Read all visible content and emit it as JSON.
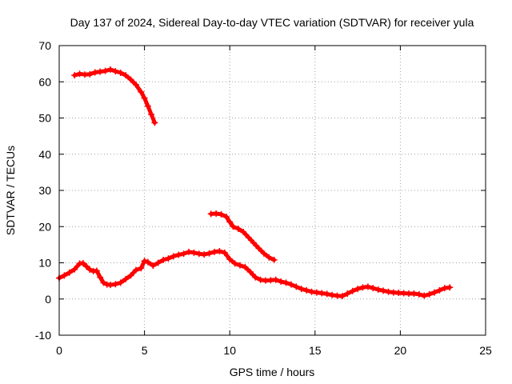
{
  "chart_data": {
    "type": "scatter",
    "title": "Day 137 of 2024, Sidereal Day-to-day VTEC variation (SDTVAR) for receiver yula",
    "xlabel": "GPS time / hours",
    "ylabel": "SDTVAR / TECUs",
    "xlim": [
      0,
      25
    ],
    "ylim": [
      -10,
      70
    ],
    "xticks": [
      0,
      5,
      10,
      15,
      20,
      25
    ],
    "yticks": [
      -10,
      0,
      10,
      20,
      30,
      40,
      50,
      60,
      70
    ],
    "xtick_labels": [
      "0",
      "5",
      "10",
      "15",
      "20",
      "25"
    ],
    "ytick_labels": [
      "-10",
      "0",
      "10",
      "20",
      "30",
      "40",
      "50",
      "60",
      "70"
    ],
    "grid": true,
    "series_color": "#ff0000",
    "series": [
      {
        "name": "arc-1",
        "points": [
          [
            0.9,
            61.8
          ],
          [
            1.2,
            62.2
          ],
          [
            1.5,
            62.0
          ],
          [
            1.8,
            62.1
          ],
          [
            2.1,
            62.6
          ],
          [
            2.4,
            62.8
          ],
          [
            2.7,
            63.0
          ],
          [
            3.0,
            63.4
          ],
          [
            3.3,
            62.9
          ],
          [
            3.6,
            62.5
          ],
          [
            3.9,
            61.8
          ],
          [
            4.2,
            60.6
          ],
          [
            4.5,
            59.2
          ],
          [
            4.8,
            57.2
          ],
          [
            5.0,
            55.5
          ],
          [
            5.2,
            53.3
          ],
          [
            5.4,
            51.0
          ],
          [
            5.6,
            48.7
          ]
        ]
      },
      {
        "name": "arc-2",
        "points": [
          [
            0.0,
            5.8
          ],
          [
            0.3,
            6.5
          ],
          [
            0.6,
            7.3
          ],
          [
            0.9,
            8.2
          ],
          [
            1.2,
            9.8
          ],
          [
            1.4,
            9.9
          ],
          [
            1.6,
            9.0
          ],
          [
            1.8,
            8.1
          ],
          [
            2.0,
            7.7
          ],
          [
            2.2,
            7.8
          ],
          [
            2.4,
            6.0
          ],
          [
            2.6,
            4.5
          ],
          [
            2.8,
            4.0
          ],
          [
            3.0,
            3.9
          ],
          [
            3.3,
            4.1
          ],
          [
            3.6,
            4.5
          ],
          [
            3.9,
            5.5
          ],
          [
            4.2,
            6.5
          ],
          [
            4.5,
            8.0
          ],
          [
            4.8,
            8.5
          ],
          [
            5.0,
            10.5
          ],
          [
            5.2,
            10.2
          ],
          [
            5.5,
            9.2
          ],
          [
            5.8,
            10.0
          ],
          [
            6.1,
            10.8
          ],
          [
            6.4,
            11.2
          ],
          [
            6.7,
            11.8
          ],
          [
            7.0,
            12.2
          ],
          [
            7.3,
            12.5
          ],
          [
            7.6,
            13.0
          ],
          [
            7.9,
            12.8
          ],
          [
            8.2,
            12.5
          ],
          [
            8.5,
            12.3
          ],
          [
            8.8,
            12.6
          ],
          [
            9.1,
            13.0
          ],
          [
            9.4,
            13.2
          ],
          [
            9.7,
            12.8
          ],
          [
            10.0,
            11.0
          ],
          [
            10.3,
            9.8
          ],
          [
            10.6,
            9.3
          ],
          [
            10.9,
            8.8
          ],
          [
            11.2,
            7.5
          ],
          [
            11.5,
            6.0
          ],
          [
            11.8,
            5.3
          ],
          [
            12.1,
            5.1
          ],
          [
            12.4,
            5.2
          ],
          [
            12.7,
            5.3
          ],
          [
            13.0,
            4.8
          ],
          [
            13.3,
            4.5
          ],
          [
            13.6,
            4.0
          ],
          [
            13.9,
            3.4
          ],
          [
            14.2,
            2.8
          ],
          [
            14.5,
            2.4
          ],
          [
            14.8,
            2.0
          ],
          [
            15.1,
            1.8
          ],
          [
            15.4,
            1.6
          ],
          [
            15.7,
            1.4
          ],
          [
            16.0,
            1.1
          ],
          [
            16.3,
            0.9
          ],
          [
            16.6,
            0.8
          ],
          [
            16.9,
            1.5
          ],
          [
            17.2,
            2.2
          ],
          [
            17.5,
            2.8
          ],
          [
            17.8,
            3.2
          ],
          [
            18.1,
            3.4
          ],
          [
            18.4,
            3.0
          ],
          [
            18.7,
            2.6
          ],
          [
            19.0,
            2.3
          ],
          [
            19.3,
            2.0
          ],
          [
            19.6,
            1.8
          ],
          [
            19.9,
            1.7
          ],
          [
            20.2,
            1.6
          ],
          [
            20.5,
            1.5
          ],
          [
            20.8,
            1.5
          ],
          [
            21.1,
            1.3
          ],
          [
            21.4,
            0.9
          ],
          [
            21.7,
            1.3
          ],
          [
            22.0,
            1.8
          ],
          [
            22.3,
            2.4
          ],
          [
            22.6,
            3.0
          ],
          [
            22.9,
            3.2
          ]
        ]
      },
      {
        "name": "arc-3",
        "points": [
          [
            8.9,
            23.5
          ],
          [
            9.2,
            23.6
          ],
          [
            9.5,
            23.4
          ],
          [
            9.8,
            22.7
          ],
          [
            10.0,
            21.3
          ],
          [
            10.2,
            20.0
          ],
          [
            10.5,
            19.4
          ],
          [
            10.8,
            18.5
          ],
          [
            11.1,
            17.0
          ],
          [
            11.4,
            15.5
          ],
          [
            11.7,
            14.0
          ],
          [
            12.0,
            12.6
          ],
          [
            12.3,
            11.5
          ],
          [
            12.6,
            10.8
          ]
        ]
      }
    ]
  }
}
